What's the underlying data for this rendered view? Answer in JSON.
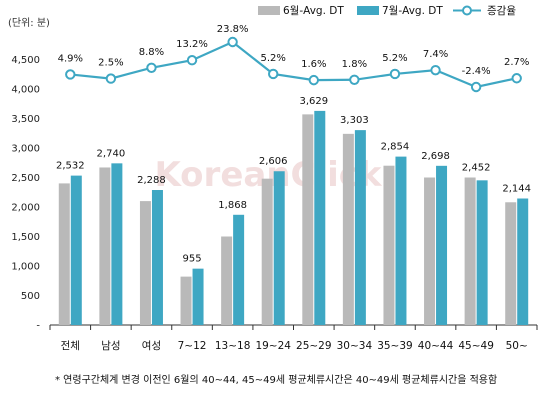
{
  "chart_data": {
    "type": "bar",
    "unit_label": "(단위: 분)",
    "watermark": "KoreanClick",
    "footnote": "* 연령구간체계 변경 이전인 6월의 40~44, 45~49세 평균체류시간은 40~49세 평균체류시간을 적용함",
    "categories": [
      "전체",
      "남성",
      "여성",
      "7~12",
      "13~18",
      "19~24",
      "25~29",
      "30~34",
      "35~39",
      "40~44",
      "45~49",
      "50~"
    ],
    "series": [
      {
        "name": "6월-Avg. DT",
        "type": "bar",
        "color": "#b9b9b9",
        "values": [
          2400,
          2670,
          2100,
          820,
          1500,
          2480,
          3570,
          3240,
          2700,
          2500,
          2500,
          2080
        ]
      },
      {
        "name": "7월-Avg. DT",
        "type": "bar",
        "color": "#3ea7c3",
        "values": [
          2532,
          2740,
          2288,
          955,
          1868,
          2606,
          3629,
          3303,
          2854,
          2698,
          2452,
          2144
        ]
      },
      {
        "name": "증감율",
        "type": "line",
        "color": "#3ea7c3",
        "values": [
          4.9,
          2.5,
          8.8,
          13.2,
          23.8,
          5.2,
          1.6,
          1.8,
          5.2,
          7.4,
          -2.4,
          2.7
        ]
      }
    ],
    "bar_value_labels": [
      "2,532",
      "2,740",
      "2,288",
      "955",
      "1,868",
      "2,606",
      "3,629",
      "3,303",
      "2,854",
      "2,698",
      "2,452",
      "2,144"
    ],
    "line_value_labels": [
      "4.9%",
      "2.5%",
      "8.8%",
      "13.2%",
      "23.8%",
      "5.2%",
      "1.6%",
      "1.8%",
      "5.2%",
      "7.4%",
      "-2.4%",
      "2.7%"
    ],
    "y_ticks": [
      "-",
      "500",
      "1,000",
      "1,500",
      "2,000",
      "2,500",
      "3,000",
      "3,500",
      "4,000",
      "4,500"
    ],
    "ylim": [
      0,
      5000
    ],
    "legend_position": "top-right",
    "grid": false
  }
}
